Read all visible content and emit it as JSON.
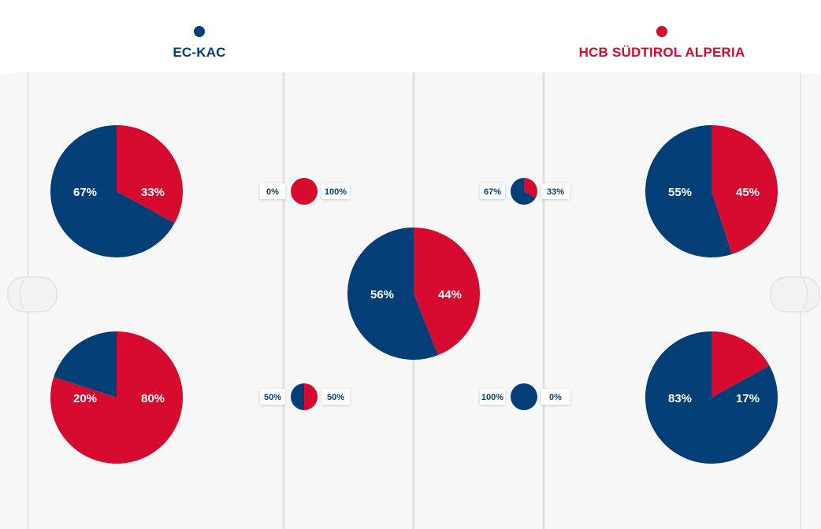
{
  "teams": {
    "left": {
      "name": "EC-KAC",
      "color": "#033f76"
    },
    "right": {
      "name": "HCB SÜDTIROL ALPERIA",
      "color": "#d60a2f"
    }
  },
  "chart_data": [
    {
      "type": "pie",
      "zone": "left-top",
      "series": [
        {
          "name": "EC-KAC",
          "value": 67
        },
        {
          "name": "HCB SÜDTIROL ALPERIA",
          "value": 33
        }
      ],
      "labels": [
        "67%",
        "33%"
      ]
    },
    {
      "type": "pie",
      "zone": "left-bottom",
      "series": [
        {
          "name": "EC-KAC",
          "value": 20
        },
        {
          "name": "HCB SÜDTIROL ALPERIA",
          "value": 80
        }
      ],
      "labels": [
        "20%",
        "80%"
      ]
    },
    {
      "type": "pie",
      "zone": "center",
      "series": [
        {
          "name": "EC-KAC",
          "value": 56
        },
        {
          "name": "HCB SÜDTIROL ALPERIA",
          "value": 44
        }
      ],
      "labels": [
        "56%",
        "44%"
      ]
    },
    {
      "type": "pie",
      "zone": "right-top",
      "series": [
        {
          "name": "EC-KAC",
          "value": 55
        },
        {
          "name": "HCB SÜDTIROL ALPERIA",
          "value": 45
        }
      ],
      "labels": [
        "55%",
        "45%"
      ]
    },
    {
      "type": "pie",
      "zone": "right-bottom",
      "series": [
        {
          "name": "EC-KAC",
          "value": 83
        },
        {
          "name": "HCB SÜDTIROL ALPERIA",
          "value": 17
        }
      ],
      "labels": [
        "83%",
        "17%"
      ]
    },
    {
      "type": "pie",
      "zone": "neutral-left-top",
      "series": [
        {
          "name": "EC-KAC",
          "value": 0
        },
        {
          "name": "HCB SÜDTIROL ALPERIA",
          "value": 100
        }
      ],
      "labels": [
        "0%",
        "100%"
      ]
    },
    {
      "type": "pie",
      "zone": "neutral-left-bottom",
      "series": [
        {
          "name": "EC-KAC",
          "value": 50
        },
        {
          "name": "HCB SÜDTIROL ALPERIA",
          "value": 50
        }
      ],
      "labels": [
        "50%",
        "50%"
      ]
    },
    {
      "type": "pie",
      "zone": "neutral-right-top",
      "series": [
        {
          "name": "EC-KAC",
          "value": 67
        },
        {
          "name": "HCB SÜDTIROL ALPERIA",
          "value": 33
        }
      ],
      "labels": [
        "67%",
        "33%"
      ]
    },
    {
      "type": "pie",
      "zone": "neutral-right-bottom",
      "series": [
        {
          "name": "EC-KAC",
          "value": 100
        },
        {
          "name": "HCB SÜDTIROL ALPERIA",
          "value": 0
        }
      ],
      "labels": [
        "100%",
        "0%"
      ]
    }
  ]
}
